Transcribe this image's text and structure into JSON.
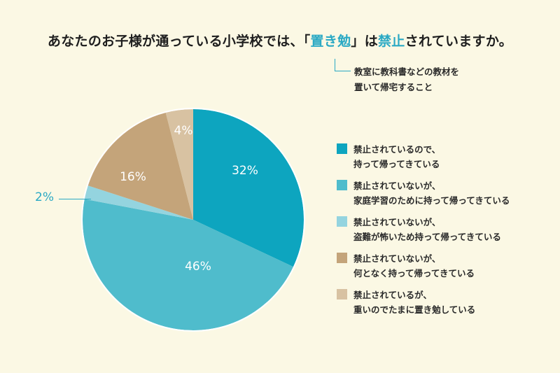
{
  "title": {
    "prefix": "あなたのお子様が通っている小学校では、「",
    "highlight1": "置き勉",
    "middle": "」は",
    "highlight2": "禁止",
    "suffix": "されていますか。"
  },
  "note": {
    "line1": "教室に教科書などの教材を",
    "line2": "置いて帰宅すること"
  },
  "colors": {
    "background": "#fbf8e4",
    "accent": "#2aa9c4"
  },
  "pie_labels": {
    "s0": "32%",
    "s1": "46%",
    "s2": "2%",
    "s3": "16%",
    "s4": "4%"
  },
  "legend": [
    {
      "line1": "禁止されているので、",
      "line2": "持って帰ってきている",
      "color": "#0da5bf"
    },
    {
      "line1": "禁止されていないが、",
      "line2": "家庭学習のために持って帰ってきている",
      "color": "#4fbccc"
    },
    {
      "line1": "禁止されていないが、",
      "line2": "盗難が怖いため持って帰ってきている",
      "color": "#94d4df"
    },
    {
      "line1": "禁止されていないが、",
      "line2": "何となく持って帰ってきている",
      "color": "#c4a47a"
    },
    {
      "line1": "禁止されているが、",
      "line2": "重いのでたまに置き勉している",
      "color": "#d8c2a2"
    }
  ],
  "chart_data": {
    "type": "pie",
    "title": "あなたのお子様が通っている小学校では、「置き勉」は禁止されていますか。",
    "annotation": "置き勉: 教室に教科書などの教材を置いて帰宅すること",
    "categories": [
      "禁止されているので、持って帰ってきている",
      "禁止されていないが、家庭学習のために持って帰ってきている",
      "禁止されていないが、盗難が怖いため持って帰ってきている",
      "禁止されていないが、何となく持って帰ってきている",
      "禁止されているが、重いのでたまに置き勉している"
    ],
    "values": [
      32,
      46,
      2,
      16,
      4
    ],
    "unit": "%",
    "colors": [
      "#0da5bf",
      "#4fbccc",
      "#94d4df",
      "#c4a47a",
      "#d8c2a2"
    ],
    "start_angle": "12 o'clock, clockwise",
    "legend_position": "right"
  }
}
